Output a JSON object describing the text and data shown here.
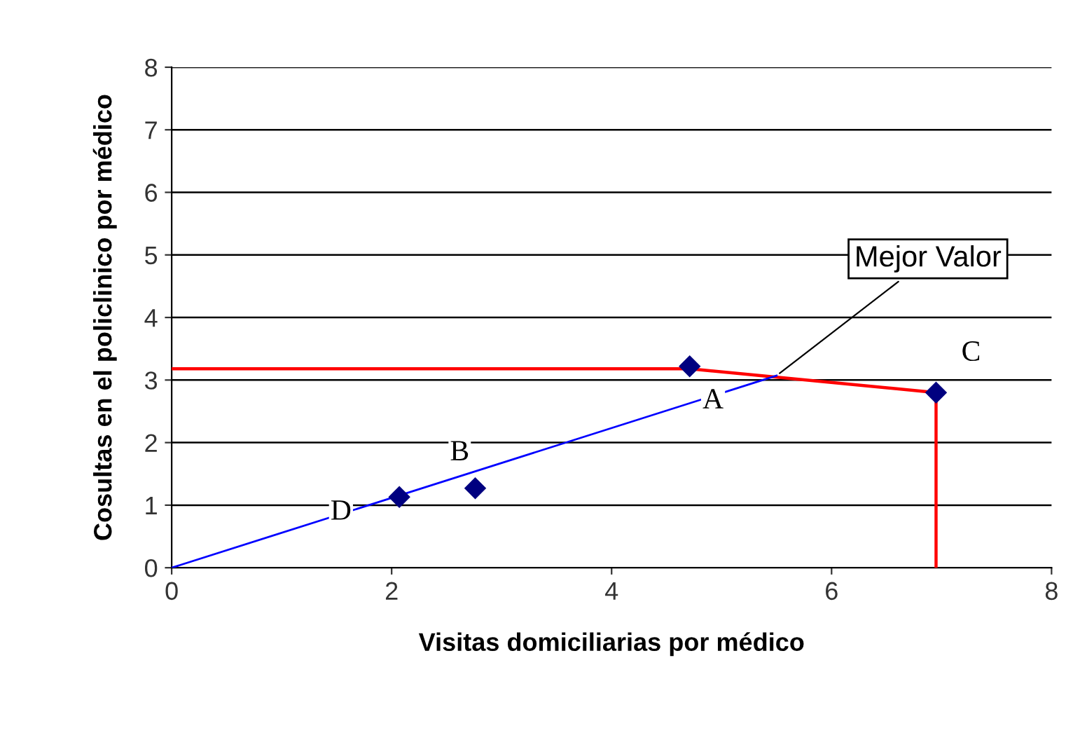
{
  "chart_data": {
    "type": "line",
    "xlabel": "Visitas domiciliarias por médico",
    "ylabel": "Cosultas en el policlinico por médico",
    "series": [
      {
        "type": "scatter",
        "color": "#000080",
        "marker": "diamond",
        "x": [
          2.07,
          2.76,
          4.71,
          6.95
        ],
        "values": [
          1.13,
          1.27,
          3.22,
          2.8
        ]
      },
      {
        "color": "#ff0000",
        "x": [
          0,
          4.71,
          6.95,
          6.95
        ],
        "values": [
          3.18,
          3.18,
          2.8,
          0
        ]
      },
      {
        "color": "#0000ff",
        "x": [
          0,
          5.5
        ],
        "values": [
          0,
          3.07
        ]
      }
    ],
    "annotations": [
      {
        "text": "A",
        "x": 4.71,
        "y": 3.22
      },
      {
        "text": "B",
        "x": 2.76,
        "y": 1.27
      },
      {
        "text": "C",
        "x": 6.95,
        "y": 2.8
      },
      {
        "text": "D",
        "x": 2.07,
        "y": 1.13
      },
      {
        "text": "Mejor Valor",
        "x": 5.5,
        "y": 3.07
      }
    ],
    "xlim": [
      0,
      8
    ],
    "ylim": [
      0,
      8
    ],
    "xticks": [
      0,
      2,
      4,
      6,
      8
    ],
    "yticks": [
      0,
      1,
      2,
      3,
      4,
      5,
      6,
      7,
      8
    ],
    "grid": "y",
    "marker": "none",
    "line_style": "solid"
  }
}
